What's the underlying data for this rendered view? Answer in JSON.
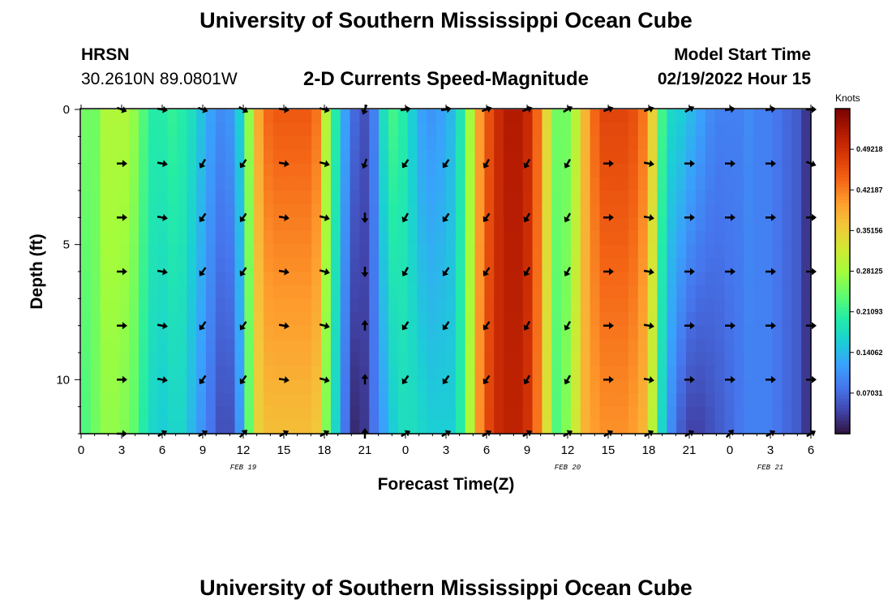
{
  "header": {
    "title": "University of Southern Mississippi Ocean Cube",
    "station": "HRSN",
    "coords": "30.2610N  89.0801W",
    "chart_title": "2-D Currents Speed-Magnitude",
    "model_start_label": "Model Start Time",
    "model_start_value": "02/19/2022 Hour 15"
  },
  "footer": {
    "title": "University of Southern Mississippi Ocean Cube"
  },
  "chart_data": {
    "type": "heatmap",
    "title": "2-D Currents Speed-Magnitude",
    "xlabel": "Forecast Time(Z)",
    "ylabel": "Depth (ft)",
    "colorbar_label": "Knots",
    "x_tick_labels": [
      "0",
      "3",
      "6",
      "9",
      "12",
      "15",
      "18",
      "21",
      "0",
      "3",
      "6",
      "9",
      "12",
      "15",
      "18",
      "21",
      "0",
      "3",
      "6"
    ],
    "x_date_labels": [
      {
        "text": "FEB 19",
        "at_tick": 4
      },
      {
        "text": "FEB 20",
        "at_tick": 12
      },
      {
        "text": "FEB 21",
        "at_tick": 17
      }
    ],
    "y_ticks": [
      0,
      5,
      10
    ],
    "y_tick_labels": [
      "0",
      "5",
      "10"
    ],
    "ylim": [
      0,
      12
    ],
    "color_range": [
      0,
      0.5625
    ],
    "colorbar_ticks": [
      {
        "value": 0.07031,
        "label": "0.07031"
      },
      {
        "value": 0.14062,
        "label": "0.14062"
      },
      {
        "value": 0.21093,
        "label": "0.21093"
      },
      {
        "value": 0.28125,
        "label": "0.28125"
      },
      {
        "value": 0.35156,
        "label": "0.35156"
      },
      {
        "value": 0.42187,
        "label": "0.42187"
      },
      {
        "value": 0.49218,
        "label": "0.49218"
      }
    ],
    "colors": [
      "#30123b",
      "#4145ab",
      "#4675ed",
      "#39a2fc",
      "#1bcfd4",
      "#24eca6",
      "#61fc6c",
      "#a4fc3b",
      "#d1e834",
      "#f3c63a",
      "#fe9b2d",
      "#f36315",
      "#d93806",
      "#b11901",
      "#7a0402"
    ],
    "surface_speed": [
      0.25,
      0.25,
      0.29,
      0.29,
      0.29,
      0.27,
      0.23,
      0.2,
      0.2,
      0.21,
      0.2,
      0.18,
      0.15,
      0.12,
      0.1,
      0.11,
      0.16,
      0.27,
      0.39,
      0.44,
      0.45,
      0.45,
      0.45,
      0.45,
      0.43,
      0.3,
      0.2,
      0.12,
      0.07,
      0.05,
      0.09,
      0.18,
      0.22,
      0.2,
      0.16,
      0.12,
      0.11,
      0.12,
      0.14,
      0.19,
      0.28,
      0.4,
      0.46,
      0.5,
      0.52,
      0.52,
      0.5,
      0.44,
      0.34,
      0.25,
      0.25,
      0.3,
      0.38,
      0.44,
      0.47,
      0.47,
      0.47,
      0.46,
      0.43,
      0.35,
      0.22,
      0.17,
      0.16,
      0.14,
      0.12,
      0.1,
      0.09,
      0.09,
      0.09,
      0.1,
      0.09,
      0.09,
      0.08,
      0.07,
      0.06,
      0.03
    ],
    "bottom_speed": [
      0.23,
      0.25,
      0.27,
      0.27,
      0.26,
      0.24,
      0.2,
      0.17,
      0.16,
      0.17,
      0.17,
      0.14,
      0.11,
      0.08,
      0.05,
      0.05,
      0.11,
      0.24,
      0.35,
      0.37,
      0.37,
      0.37,
      0.37,
      0.37,
      0.36,
      0.26,
      0.17,
      0.08,
      0.02,
      0.03,
      0.08,
      0.12,
      0.16,
      0.18,
      0.18,
      0.17,
      0.16,
      0.16,
      0.16,
      0.2,
      0.29,
      0.41,
      0.47,
      0.5,
      0.51,
      0.51,
      0.49,
      0.43,
      0.33,
      0.23,
      0.26,
      0.32,
      0.38,
      0.4,
      0.41,
      0.41,
      0.41,
      0.4,
      0.38,
      0.3,
      0.17,
      0.1,
      0.06,
      0.04,
      0.04,
      0.05,
      0.06,
      0.07,
      0.08,
      0.09,
      0.09,
      0.09,
      0.08,
      0.07,
      0.06,
      0.03
    ],
    "vector_depths_ft": [
      0,
      2,
      4,
      6,
      8,
      10,
      12
    ],
    "vector_hours": [
      3,
      6,
      9,
      12,
      15,
      18,
      21,
      24,
      27,
      30,
      33,
      36,
      39,
      42,
      45,
      48,
      51,
      54
    ],
    "vector_direction_deg": [
      [
        110,
        100,
        110,
        120,
        100,
        105,
        200,
        80,
        80,
        70,
        70,
        60,
        70,
        70,
        60,
        80,
        80,
        90
      ],
      [
        90,
        100,
        210,
        215,
        100,
        105,
        200,
        215,
        215,
        210,
        210,
        210,
        90,
        100,
        90,
        90,
        90,
        110
      ],
      [
        90,
        100,
        215,
        215,
        100,
        105,
        180,
        210,
        215,
        215,
        210,
        210,
        90,
        100,
        90,
        90,
        90,
        90
      ],
      [
        90,
        100,
        215,
        215,
        100,
        105,
        180,
        210,
        215,
        215,
        210,
        210,
        90,
        100,
        90,
        90,
        90,
        90
      ],
      [
        90,
        100,
        215,
        215,
        100,
        105,
        0,
        215,
        215,
        215,
        210,
        210,
        90,
        100,
        90,
        90,
        90,
        90
      ],
      [
        90,
        100,
        215,
        215,
        100,
        105,
        0,
        215,
        215,
        215,
        210,
        210,
        90,
        100,
        90,
        90,
        90,
        90
      ],
      [
        90,
        60,
        60,
        45,
        60,
        60,
        0,
        60,
        60,
        60,
        60,
        60,
        60,
        60,
        60,
        45,
        60,
        60
      ]
    ]
  }
}
